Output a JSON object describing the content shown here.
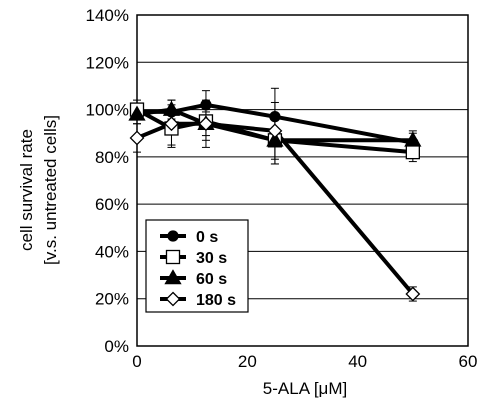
{
  "chart_data": {
    "type": "line",
    "xlabel": "5-ALA [μM]",
    "ylabel_line1": "cell survival rate",
    "ylabel_line2": "[v.s. untreated cells]",
    "xlim": [
      0,
      60
    ],
    "ylim": [
      0,
      140
    ],
    "x_ticks": [
      0,
      20,
      40,
      60
    ],
    "y_ticks": [
      0,
      20,
      40,
      60,
      80,
      100,
      120,
      140
    ],
    "y_tick_labels": [
      "0%",
      "20%",
      "40%",
      "60%",
      "80%",
      "100%",
      "120%",
      "140%"
    ],
    "grid": "horizontal",
    "legend_position": "bottom-left",
    "series": [
      {
        "name": "0 s",
        "marker": "circle-filled",
        "x": [
          0,
          6.25,
          12.5,
          25,
          50
        ],
        "y": [
          99,
          99,
          102,
          97,
          86
        ],
        "err": [
          3,
          3,
          6,
          12,
          4
        ]
      },
      {
        "name": "30 s",
        "marker": "square-open",
        "x": [
          0,
          6.25,
          12.5,
          25,
          50
        ],
        "y": [
          100,
          92,
          95,
          87,
          82
        ],
        "err": [
          4,
          7,
          8,
          10,
          4
        ]
      },
      {
        "name": "60 s",
        "marker": "triangle-filled",
        "x": [
          0,
          6.25,
          12.5,
          25,
          50
        ],
        "y": [
          98,
          100,
          94,
          87,
          87
        ],
        "err": [
          4,
          4,
          5,
          10,
          4
        ]
      },
      {
        "name": "180 s",
        "marker": "diamond-open",
        "x": [
          0,
          6.25,
          12.5,
          25,
          50
        ],
        "y": [
          88,
          94,
          94,
          91,
          22
        ],
        "err": [
          6,
          10,
          10,
          12,
          3
        ]
      }
    ]
  }
}
